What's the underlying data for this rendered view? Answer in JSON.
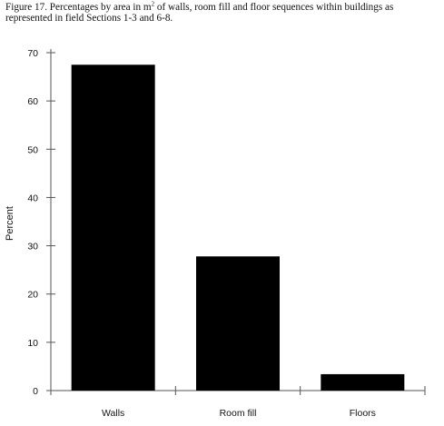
{
  "caption": {
    "prefix": "Figure 17.  Percentages by area in m",
    "superscript": "2",
    "suffix": " of walls, room fill and floor sequences within buildings as represented in field Sections 1-3 and 6-8."
  },
  "chart_data": {
    "type": "bar",
    "title": "Figure 17.  Percentages by area in m2 of walls, room fill and floor sequences within buildings as represented in field Sections 1-3 and 6-8.",
    "xlabel": "",
    "ylabel": "Percent",
    "categories": [
      "Walls",
      "Room fill",
      "Floors"
    ],
    "values": [
      67.5,
      27.8,
      3.4
    ],
    "ylim": [
      0,
      70
    ],
    "yticks": [
      0,
      10,
      20,
      30,
      40,
      50,
      60,
      70
    ],
    "grid": false,
    "legend": "none",
    "bar_color": "#000000",
    "axis_color": "#555555"
  }
}
